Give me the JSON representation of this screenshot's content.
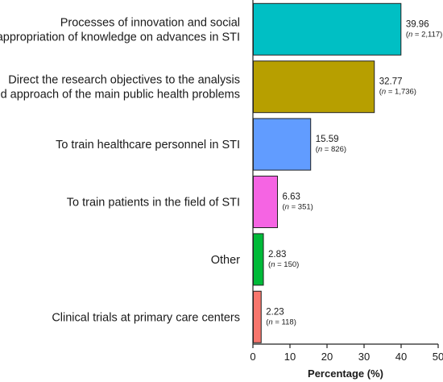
{
  "chart_data": {
    "type": "bar",
    "orientation": "horizontal",
    "title": "",
    "xlabel": "Percentage (%)",
    "ylabel": "",
    "xlim": [
      0,
      50
    ],
    "xticks": [
      0,
      10,
      20,
      30,
      40,
      50
    ],
    "grid": false,
    "categories": [
      "Processes of innovation and social appropriation of knowledge on advances in STI",
      "Direct the research objectives to the analysis and approach of the main public health problems",
      "To train healthcare personnel in STI",
      "To train patients in the field of STI",
      "Other",
      "Clinical trials at primary care centers"
    ],
    "category_lines": [
      [
        "Processes of innovation and social",
        "appropriation of knowledge on advances in STI"
      ],
      [
        "Direct the research objectives to the analysis",
        "and approach of the main public health problems"
      ],
      [
        "To train healthcare personnel in STI"
      ],
      [
        "To train patients in the field of STI"
      ],
      [
        "Other"
      ],
      [
        "Clinical trials at primary care centers"
      ]
    ],
    "values": [
      39.96,
      32.77,
      15.59,
      6.63,
      2.83,
      2.23
    ],
    "value_labels": [
      "39.96",
      "32.77",
      "15.59",
      "6.63",
      "2.83",
      "2.23"
    ],
    "counts": [
      "2,117",
      "1,736",
      "826",
      "351",
      "150",
      "118"
    ],
    "count_prefix": "n",
    "colors": [
      "#00BFC4",
      "#B79F00",
      "#619CFF",
      "#F564E3",
      "#00BA38",
      "#F8766D"
    ]
  }
}
